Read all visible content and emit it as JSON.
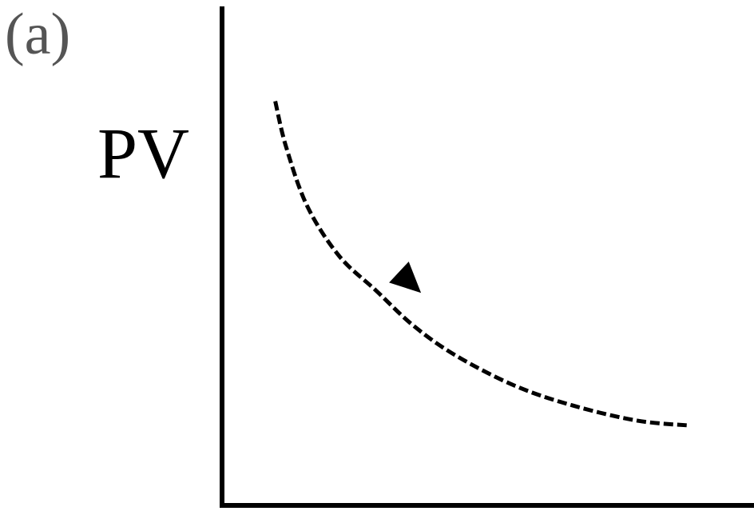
{
  "panel_label": "(a)",
  "chart_data": {
    "type": "line",
    "title": "",
    "xlabel": "",
    "ylabel": "PV",
    "grid": false,
    "legend": "none",
    "axis_ticks": false,
    "xlim": [
      0,
      1
    ],
    "ylim": [
      0,
      1
    ],
    "series": [
      {
        "line_style": "dashed",
        "color": "#000000",
        "direction": "decreasing",
        "arrow_at": [
          0.35,
          0.45
        ],
        "points": [
          [
            0.1,
            0.81
          ],
          [
            0.12,
            0.72
          ],
          [
            0.16,
            0.6
          ],
          [
            0.22,
            0.5
          ],
          [
            0.29,
            0.43
          ],
          [
            0.36,
            0.36
          ],
          [
            0.44,
            0.3
          ],
          [
            0.55,
            0.24
          ],
          [
            0.66,
            0.2
          ],
          [
            0.78,
            0.17
          ],
          [
            0.88,
            0.16
          ]
        ]
      }
    ]
  }
}
